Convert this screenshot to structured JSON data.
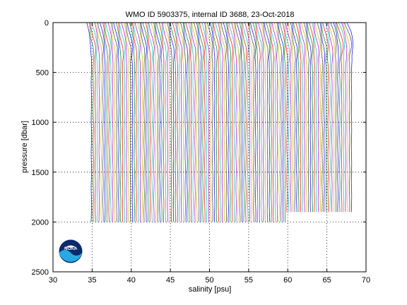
{
  "chart_data": {
    "type": "line",
    "title": "WMO ID 5903375, internal ID 3688, 23-Oct-2018",
    "xlabel": "salinity [psu]",
    "ylabel": "pressure [dbar]",
    "xlim": [
      30,
      70
    ],
    "ylim": [
      0,
      2500
    ],
    "y_reversed": true,
    "grid": "dotted",
    "x_ticks": [
      30,
      35,
      40,
      45,
      50,
      55,
      60,
      65,
      70
    ],
    "y_ticks": [
      0,
      500,
      1000,
      1500,
      2000,
      2500
    ],
    "profile_count": 134,
    "profile_offset_step": 0.25,
    "profile_start_salinity_surface": 34.3,
    "profile_start_salinity_deep": 34.9,
    "profile_max_pressure": 2000,
    "late_profile_max_pressure": 1900,
    "late_profile_start_index": 100,
    "series_colors": [
      "#0000ff",
      "#008000",
      "#ff0000",
      "#00bfbf",
      "#bf00bf",
      "#bfbf00",
      "#404040"
    ]
  },
  "logo": {
    "name": "noaa-logo",
    "text": "NOAA",
    "colors": {
      "dark": "#0a2a6b",
      "light": "#27a9e1",
      "white": "#ffffff"
    }
  }
}
